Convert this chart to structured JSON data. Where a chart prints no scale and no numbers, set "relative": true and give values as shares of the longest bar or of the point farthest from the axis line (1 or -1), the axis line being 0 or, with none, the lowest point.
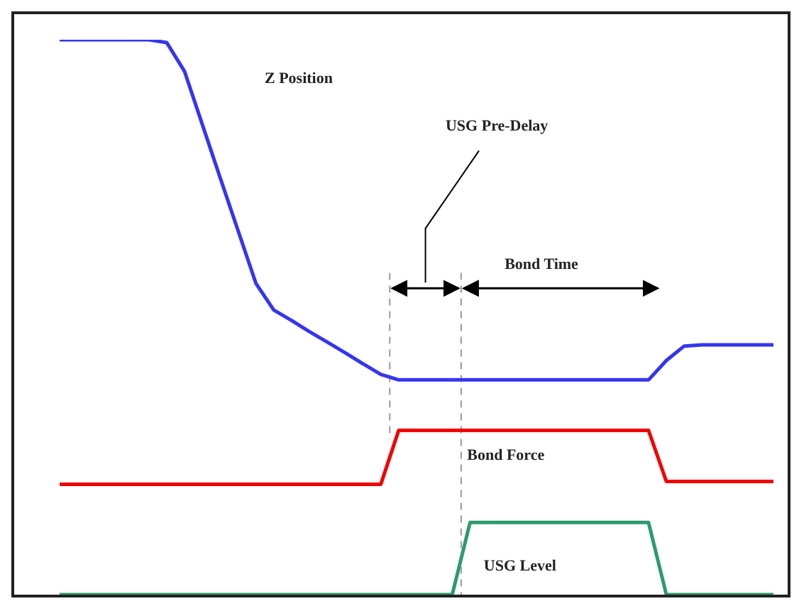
{
  "chart_data": {
    "type": "line",
    "relative": true,
    "marker": "none",
    "line_style": "solid",
    "categories": [
      null,
      null,
      null,
      null,
      null,
      null,
      null,
      null,
      null,
      null,
      null,
      null,
      null,
      null,
      null,
      null,
      null,
      null,
      null,
      null,
      null,
      null,
      null,
      null,
      null,
      null,
      null,
      null,
      null,
      null,
      null,
      null,
      null,
      null,
      null,
      null,
      null,
      null,
      null,
      null,
      null
    ],
    "series": [
      {
        "color": "#3535f0",
        "values": [
          1,
          1,
          1,
          1,
          1,
          1,
          0.995,
          0.943,
          0.847,
          0.751,
          0.656,
          0.561,
          0.513,
          0.494,
          0.474,
          0.455,
          0.436,
          0.416,
          0.397,
          0.387,
          0.387,
          0.387,
          0.387,
          0.387,
          0.387,
          0.387,
          0.387,
          0.387,
          0.387,
          0.387,
          0.387,
          0.387,
          0.387,
          0.387,
          0.422,
          0.448,
          0.45,
          0.45,
          0.45,
          0.45,
          0.45
        ]
      },
      {
        "color": "#f00000",
        "values": [
          0.199,
          0.199,
          0.199,
          0.199,
          0.199,
          0.199,
          0.199,
          0.199,
          0.199,
          0.199,
          0.199,
          0.199,
          0.199,
          0.199,
          0.199,
          0.199,
          0.199,
          0.199,
          0.199,
          0.296,
          0.296,
          0.296,
          0.296,
          0.296,
          0.296,
          0.296,
          0.296,
          0.296,
          0.296,
          0.296,
          0.296,
          0.296,
          0.296,
          0.296,
          0.204,
          0.204,
          0.204,
          0.204,
          0.204,
          0.204,
          0.204
        ]
      },
      {
        "color": "#2e9a6e",
        "values": [
          0,
          0,
          0,
          0,
          0,
          0,
          0,
          0,
          0,
          0,
          0,
          0,
          0,
          0,
          0,
          0,
          0,
          0,
          0,
          0,
          0,
          0,
          0,
          0.13,
          0.13,
          0.13,
          0.13,
          0.13,
          0.13,
          0.13,
          0.13,
          0.13,
          0.13,
          0.13,
          0,
          0,
          0,
          0,
          0,
          0,
          0
        ]
      }
    ],
    "annotations": [
      "Z Position",
      "USG Pre-Delay",
      "Bond Time",
      "Bond Force",
      "USG Level"
    ]
  }
}
